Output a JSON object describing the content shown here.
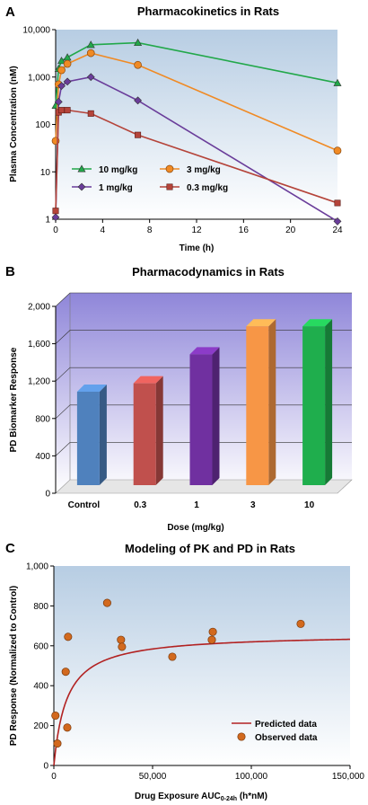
{
  "chart_data": [
    {
      "panel": "A",
      "type": "line",
      "title": "Pharmacokinetics in Rats",
      "xlabel": "Time (h)",
      "ylabel": "Plasma Concentration (nM)",
      "y_scale": "log",
      "ylim": [
        1,
        10000
      ],
      "xlim": [
        0,
        24
      ],
      "x_ticks": [
        0,
        4,
        8,
        12,
        16,
        20,
        24
      ],
      "y_ticks": [
        1,
        10,
        100,
        1000,
        10000
      ],
      "y_tick_labels": [
        "1",
        "10",
        "100",
        "1,000",
        "10,000"
      ],
      "grid": false,
      "legend_position": "bottom-left",
      "series": [
        {
          "name": "10 mg/kg",
          "color": "#22a84a",
          "marker": "triangle",
          "x": [
            0,
            0.25,
            0.5,
            1,
            3,
            7,
            24
          ],
          "y": [
            250,
            1500,
            2200,
            2600,
            4800,
            5300,
            750
          ]
        },
        {
          "name": "3 mg/kg",
          "color": "#f08a24",
          "marker": "circle",
          "x": [
            0,
            0.25,
            0.5,
            1,
            3,
            7,
            24
          ],
          "y": [
            45,
            700,
            1400,
            1900,
            3200,
            1800,
            28
          ]
        },
        {
          "name": "1 mg/kg",
          "color": "#6a3d9a",
          "marker": "diamond",
          "x": [
            0,
            0.25,
            0.5,
            1,
            3,
            7,
            24
          ],
          "y": [
            1.1,
            300,
            650,
            800,
            1000,
            320,
            0.9
          ]
        },
        {
          "name": "0.3 mg/kg",
          "color": "#b5443a",
          "marker": "square",
          "x": [
            0,
            0.25,
            0.5,
            1,
            3,
            7,
            24
          ],
          "y": [
            1.5,
            180,
            200,
            200,
            170,
            60,
            2.2
          ]
        }
      ]
    },
    {
      "panel": "B",
      "type": "bar",
      "title": "Pharmacodynamics in Rats",
      "xlabel": "Dose (mg/kg)",
      "ylabel": "PD Biomarker Response",
      "categories": [
        "Control",
        "0.3",
        "1",
        "3",
        "10"
      ],
      "values": [
        1000,
        1090,
        1400,
        1700,
        1700
      ],
      "colors": [
        "#4f81bd",
        "#c0504d",
        "#7030a0",
        "#f79646",
        "#1fae4d"
      ],
      "ylim": [
        0,
        2000
      ],
      "y_ticks": [
        0,
        400,
        800,
        1200,
        1600,
        2000
      ],
      "y_tick_labels": [
        "0",
        "400",
        "800",
        "1,200",
        "1,600",
        "2,000"
      ],
      "grid": true
    },
    {
      "panel": "C",
      "type": "scatter",
      "title": "Modeling of PK and PD in Rats",
      "xlabel": "Drug Exposure AUC",
      "xlabel_sub": "0-24h",
      "xlabel_tail": " (h*nM)",
      "ylabel": "PD Response (Normalized to Control)",
      "xlim": [
        0,
        150000
      ],
      "ylim": [
        0,
        1000
      ],
      "x_ticks": [
        0,
        50000,
        100000,
        150000
      ],
      "x_tick_labels": [
        "0",
        "50,000",
        "100,000",
        "150,000"
      ],
      "y_ticks": [
        0,
        200,
        400,
        600,
        800,
        1000
      ],
      "y_tick_labels": [
        "0",
        "200",
        "400",
        "600",
        "800",
        "1,000"
      ],
      "grid": false,
      "legend_position": "bottom-right",
      "series": [
        {
          "name": "Predicted data",
          "type": "line",
          "color": "#b22222",
          "emax": 660,
          "k": 6500
        },
        {
          "name": "Observed data",
          "type": "scatter",
          "color": "#d2691e",
          "x": [
            800,
            1800,
            6000,
            6800,
            7200,
            27000,
            34000,
            34500,
            60000,
            80000,
            80500,
            125000
          ],
          "y": [
            250,
            110,
            470,
            190,
            645,
            815,
            630,
            595,
            545,
            630,
            670,
            710
          ]
        }
      ]
    }
  ],
  "panels": [
    {
      "label": "A",
      "title": "Pharmacokinetics in Rats",
      "xlabel": "Time (h)",
      "ylabel": "Plasma Concentration (nM)"
    },
    {
      "label": "B",
      "title": "Pharmacodynamics in Rats",
      "xlabel": "Dose (mg/kg)",
      "ylabel": "PD Biomarker Response"
    },
    {
      "label": "C",
      "title": "Modeling of PK and PD in Rats",
      "xlabel": "Drug Exposure AUC",
      "xlabel_sub": "0-24h",
      "xlabel_tail": " (h*nM)",
      "ylabel": "PD Response (Normalized to Control)"
    }
  ],
  "colors": {
    "plot_bg_top": "#b7cde3",
    "plot_bg_bottom": "#ffffff",
    "bar_top_face": "#b3a6de",
    "bar_floor": "#e6e6e6"
  }
}
